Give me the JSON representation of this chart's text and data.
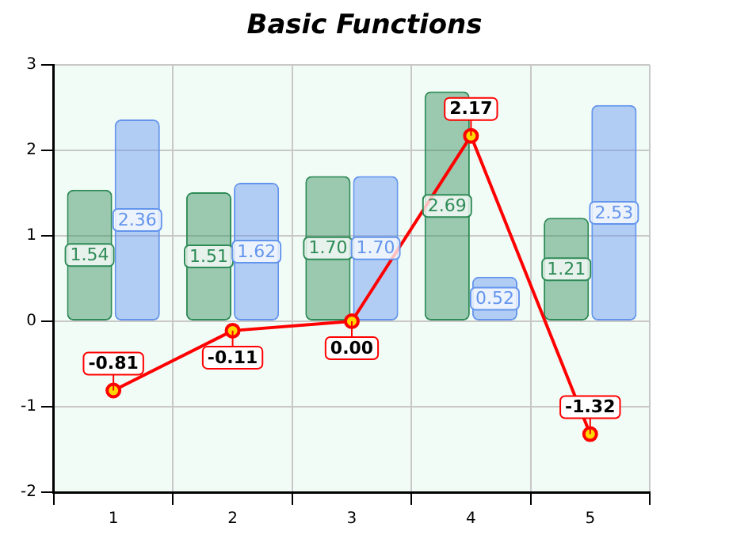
{
  "chart_data": {
    "type": "bar",
    "title": "Basic Functions",
    "categories": [
      "1",
      "2",
      "3",
      "4",
      "5"
    ],
    "series": [
      {
        "color": "#2e8b57",
        "values": [
          1.54,
          1.51,
          1.7,
          2.69,
          1.21
        ],
        "value_labels": [
          "1.54",
          "1.51",
          "1.70",
          "2.69",
          "1.21"
        ]
      },
      {
        "color": "#6495ed",
        "values": [
          2.36,
          1.62,
          1.7,
          0.52,
          2.53
        ],
        "value_labels": [
          "2.36",
          "1.62",
          "1.70",
          "0.52",
          "2.53"
        ]
      },
      {
        "type": "line",
        "color": "#ff0000",
        "values": [
          -0.81,
          -0.11,
          0.0,
          2.17,
          -1.32
        ],
        "value_labels": [
          "-0.81",
          "-0.11",
          "0.00",
          "2.17",
          "-1.32"
        ]
      }
    ],
    "ylim": [
      -2,
      3
    ],
    "yticks": [
      -2,
      -1,
      0,
      1,
      2,
      3
    ],
    "grid": true,
    "legend": false,
    "marker": "circle"
  }
}
